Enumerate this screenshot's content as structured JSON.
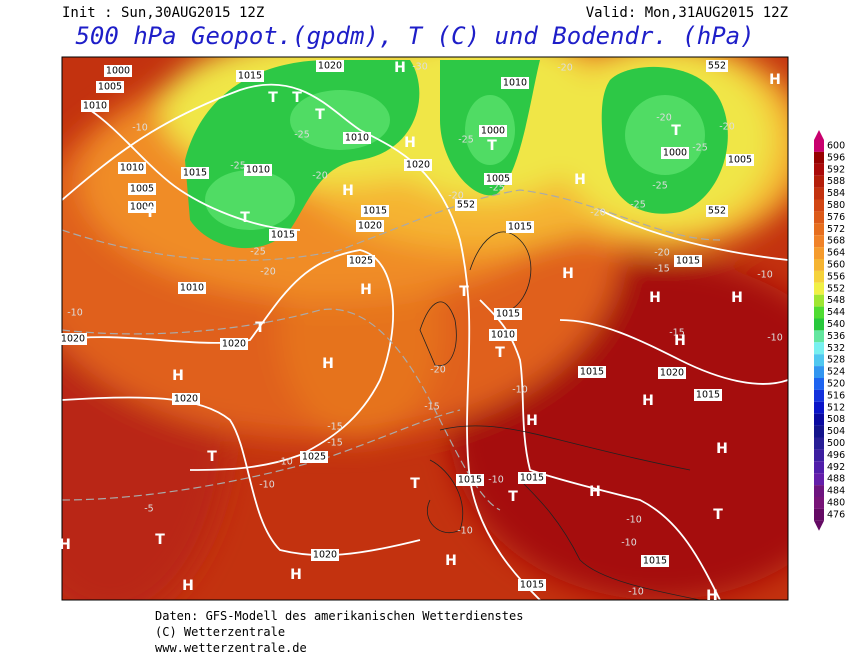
{
  "header": {
    "init": "Init : Sun,30AUG2015 12Z",
    "valid": "Valid: Mon,31AUG2015 12Z",
    "title": "500 hPa Geopot.(gpdm), T (C) und Bodendr. (hPa)"
  },
  "map": {
    "labels": [
      "1000",
      "1005",
      "1010",
      "1015",
      "1020",
      "H",
      "-30",
      "1010",
      "-20",
      "552",
      "H",
      "-10",
      "1010",
      "-25",
      "1000",
      "T",
      "T",
      "1000",
      "-20",
      "-20",
      "-25",
      "1005",
      "1010",
      "1005",
      "1000",
      "T",
      "1015",
      "1010",
      "T",
      "T",
      "T",
      "-25",
      "-25",
      "T",
      "1020",
      "H",
      "H",
      "-20",
      "1015",
      "1020",
      "-20",
      "552",
      "1005",
      "-25",
      "H",
      "-25",
      "-25",
      "552",
      "-20",
      "1015",
      "1015",
      "-25",
      "-20",
      "1010",
      "1025",
      "H",
      "T",
      "H",
      "-20",
      "-15",
      "1015",
      "H",
      "H",
      "-10",
      "-10",
      "T",
      "1020",
      "1020",
      "1015",
      "1010",
      "T",
      "-15",
      "H",
      "-10",
      "H",
      "H",
      "-20",
      "1015",
      "1020",
      "1020",
      "-15",
      "-10",
      "H",
      "1015",
      "-15",
      "-15",
      "1025",
      "H",
      "H",
      "T",
      "-10",
      "-10",
      "T",
      "1015",
      "-10",
      "1015",
      "T",
      "H",
      "T",
      "-10",
      "-5",
      "-10",
      "-10",
      "H",
      "T",
      "1020",
      "1015",
      "H",
      "H",
      "H",
      "1015",
      "-10",
      "H"
    ]
  },
  "colorbar": {
    "levels": [
      {
        "value": 600,
        "color": "#c8006e"
      },
      {
        "value": 596,
        "color": "#960000"
      },
      {
        "value": 592,
        "color": "#aa0a0a"
      },
      {
        "value": 588,
        "color": "#b41e0a"
      },
      {
        "value": 584,
        "color": "#c3320f"
      },
      {
        "value": 580,
        "color": "#d24614"
      },
      {
        "value": 576,
        "color": "#dc5a19"
      },
      {
        "value": 572,
        "color": "#e66e1e"
      },
      {
        "value": 568,
        "color": "#f08228"
      },
      {
        "value": 564,
        "color": "#f59b2d"
      },
      {
        "value": 560,
        "color": "#f5b432"
      },
      {
        "value": 556,
        "color": "#f5d23c"
      },
      {
        "value": 552,
        "color": "#f0f046"
      },
      {
        "value": 548,
        "color": "#a0e632"
      },
      {
        "value": 544,
        "color": "#50dc32"
      },
      {
        "value": 540,
        "color": "#28c83c"
      },
      {
        "value": 536,
        "color": "#64e6a0"
      },
      {
        "value": 532,
        "color": "#78f0f0"
      },
      {
        "value": 528,
        "color": "#50c8f0"
      },
      {
        "value": 524,
        "color": "#3296f0"
      },
      {
        "value": 520,
        "color": "#1e64f0"
      },
      {
        "value": 516,
        "color": "#1432dc"
      },
      {
        "value": 512,
        "color": "#0a14c8"
      },
      {
        "value": 508,
        "color": "#0a0aa0"
      },
      {
        "value": 504,
        "color": "#14148c"
      },
      {
        "value": 500,
        "color": "#281e96"
      },
      {
        "value": 496,
        "color": "#3c1ea0"
      },
      {
        "value": 492,
        "color": "#501eaa"
      },
      {
        "value": 488,
        "color": "#641eaa"
      },
      {
        "value": 484,
        "color": "#6e147f"
      },
      {
        "value": 480,
        "color": "#781478"
      },
      {
        "value": 476,
        "color": "#640a64"
      }
    ]
  },
  "footer": {
    "source": "Daten: GFS-Modell des amerikanischen Wetterdienstes",
    "copyright": "(C) Wetterzentrale",
    "url": "www.wetterzentrale.de"
  }
}
